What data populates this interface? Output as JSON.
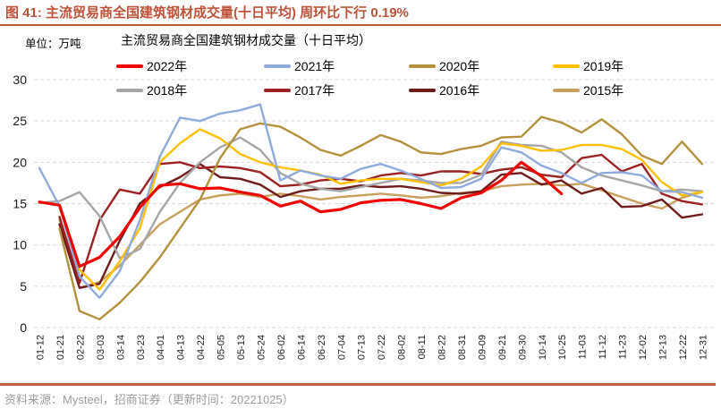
{
  "header": {
    "title": "图 41:  主流贸易商全国建筑钢材成交量(十日平均) 周环比下行 0.19%"
  },
  "chart_data": {
    "type": "line",
    "title": "主流贸易商全国建筑钢材成交量（十日平均）",
    "unit_label": "单位：万吨",
    "ylim": [
      0,
      30
    ],
    "yticks": [
      0,
      5,
      10,
      15,
      20,
      25,
      30
    ],
    "grid": "horizontal-dashed",
    "legend_position": "top",
    "categories": [
      "01-12",
      "01-21",
      "02-22",
      "03-03",
      "03-14",
      "03-23",
      "04-01",
      "04-13",
      "04-22",
      "05-05",
      "05-13",
      "05-24",
      "06-02",
      "06-14",
      "06-23",
      "07-04",
      "07-13",
      "07-22",
      "08-02",
      "08-11",
      "08-22",
      "08-31",
      "09-09",
      "09-21",
      "09-30",
      "10-14",
      "10-25",
      "11-03",
      "11-12",
      "11-23",
      "12-02",
      "12-13",
      "12-22",
      "12-31"
    ],
    "series": [
      {
        "name": "2022年",
        "color": "#EE0202",
        "width": 3.2,
        "values": [
          15.2,
          14.8,
          7.4,
          8.5,
          11.0,
          14.5,
          17.2,
          17.4,
          16.8,
          16.9,
          16.4,
          16.0,
          14.7,
          15.3,
          14.0,
          14.3,
          15.1,
          15.4,
          15.5,
          15.0,
          14.4,
          15.7,
          16.3,
          17.8,
          20.0,
          18.3,
          16.2,
          null,
          null,
          null,
          null,
          null,
          null,
          null
        ]
      },
      {
        "name": "2021年",
        "color": "#8FAADC",
        "width": 2.4,
        "values": [
          19.3,
          14.7,
          6.2,
          3.6,
          6.8,
          13.0,
          20.7,
          25.4,
          25.0,
          25.9,
          26.3,
          27.0,
          17.8,
          19.0,
          18.4,
          18.0,
          19.2,
          19.8,
          19.0,
          18.0,
          16.9,
          17.0,
          18.0,
          21.8,
          21.2,
          19.6,
          18.7,
          17.5,
          18.7,
          18.8,
          18.4,
          16.5,
          16.4,
          15.7
        ]
      },
      {
        "name": "2020年",
        "color": "#B3913C",
        "width": 2.4,
        "values": [
          null,
          12.0,
          2.0,
          1.0,
          3.0,
          5.5,
          8.5,
          12.0,
          15.5,
          20.5,
          24.0,
          24.7,
          24.3,
          23.0,
          21.5,
          20.8,
          22.0,
          23.3,
          22.5,
          21.2,
          21.0,
          21.6,
          22.0,
          23.0,
          23.1,
          25.5,
          24.8,
          23.6,
          25.2,
          23.4,
          20.8,
          19.8,
          22.5,
          19.8
        ]
      },
      {
        "name": "2019年",
        "color": "#FFC000",
        "width": 2.4,
        "values": [
          null,
          14.5,
          7.0,
          4.6,
          8.0,
          12.0,
          20.0,
          22.3,
          24.0,
          22.9,
          21.0,
          20.0,
          19.4,
          19.0,
          18.5,
          17.4,
          17.8,
          18.0,
          18.0,
          17.6,
          17.2,
          18.0,
          19.5,
          22.3,
          22.0,
          21.4,
          21.5,
          22.1,
          22.1,
          21.6,
          20.3,
          17.6,
          16.0,
          16.4
        ]
      },
      {
        "name": "2018年",
        "color": "#A6A6A6",
        "width": 2.4,
        "values": [
          15.1,
          15.3,
          16.4,
          13.5,
          8.4,
          9.5,
          14.0,
          17.5,
          20.0,
          21.8,
          23.0,
          21.5,
          18.7,
          17.4,
          16.8,
          16.5,
          17.0,
          17.5,
          18.0,
          17.8,
          17.5,
          17.5,
          18.5,
          22.5,
          22.1,
          22.0,
          21.2,
          19.4,
          18.4,
          17.8,
          17.2,
          16.5,
          16.7,
          16.5
        ]
      },
      {
        "name": "2017年",
        "color": "#9E2121",
        "width": 2.4,
        "values": [
          null,
          13.4,
          5.4,
          13.0,
          16.7,
          16.2,
          19.8,
          20.0,
          19.3,
          19.5,
          19.3,
          18.8,
          17.1,
          17.3,
          17.8,
          18.0,
          17.7,
          18.4,
          18.7,
          18.4,
          18.9,
          18.9,
          18.6,
          19.1,
          19.4,
          18.5,
          18.2,
          20.5,
          20.9,
          18.9,
          19.8,
          16.2,
          15.3,
          14.9
        ]
      },
      {
        "name": "2016年",
        "color": "#701B1B",
        "width": 2.4,
        "values": [
          null,
          12.5,
          4.8,
          5.3,
          10.5,
          15.0,
          17.0,
          18.2,
          19.8,
          18.2,
          18.0,
          17.3,
          15.8,
          16.5,
          16.8,
          16.8,
          17.2,
          17.0,
          17.1,
          16.8,
          16.3,
          16.2,
          16.5,
          18.5,
          18.7,
          17.3,
          17.8,
          16.2,
          16.9,
          14.6,
          14.7,
          15.5,
          13.3,
          13.7
        ]
      },
      {
        "name": "2015年",
        "color": "#C6A05C",
        "width": 2.4,
        "values": [
          null,
          13.1,
          4.8,
          5.5,
          7.5,
          10.0,
          12.5,
          14.0,
          15.5,
          16.0,
          16.2,
          15.8,
          16.2,
          15.9,
          15.5,
          15.8,
          16.0,
          16.2,
          16.0,
          15.7,
          15.9,
          16.3,
          16.5,
          17.1,
          17.3,
          17.4,
          17.2,
          17.4,
          16.6,
          15.8,
          15.0,
          14.4,
          15.7,
          16.4
        ]
      }
    ]
  },
  "footer": {
    "source_text": "资料来源：Mysteel，招商证券（更新时间：20221025）"
  },
  "colors": {
    "accent": "#BE5238",
    "grid_line": "#D9D9D9",
    "axis_text": "#1A1A1A",
    "footer_rule": "#C0623F",
    "footer_text": "#9C9C9C"
  }
}
